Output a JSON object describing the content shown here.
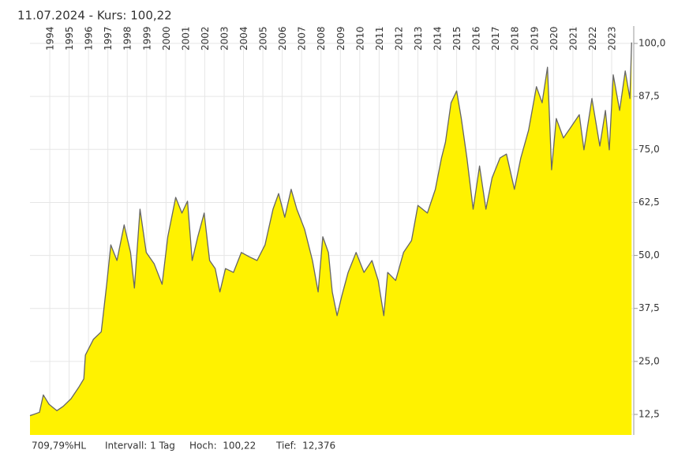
{
  "chart_data": {
    "type": "area",
    "title": "11.07.2024  -  Kurs: 100,22",
    "footer": [
      "709,79%HL",
      "Intervall: 1 Tag",
      "Hoch:  100,22",
      "Tief:  12,376"
    ],
    "x": [
      1993.48,
      1993.97,
      1994.17,
      1994.46,
      1994.87,
      1995.19,
      1995.6,
      1996.01,
      1996.26,
      1996.34,
      1996.75,
      1997.16,
      1997.44,
      1997.65,
      1997.97,
      1998.34,
      1998.67,
      1998.87,
      1999.16,
      1999.48,
      1999.89,
      2000.3,
      2000.59,
      2001.0,
      2001.32,
      2001.61,
      2001.85,
      2002.14,
      2002.47,
      2002.75,
      2003.04,
      2003.28,
      2003.57,
      2003.98,
      2004.39,
      2004.79,
      2005.2,
      2005.61,
      2006.02,
      2006.31,
      2006.63,
      2006.96,
      2007.25,
      2007.65,
      2008.06,
      2008.35,
      2008.59,
      2008.88,
      2009.08,
      2009.33,
      2009.57,
      2009.9,
      2010.31,
      2010.72,
      2011.13,
      2011.45,
      2011.74,
      2011.94,
      2012.35,
      2012.76,
      2013.17,
      2013.5,
      2013.99,
      2014.4,
      2014.72,
      2014.92,
      2015.21,
      2015.5,
      2015.74,
      2016.03,
      2016.35,
      2016.68,
      2017.01,
      2017.33,
      2017.74,
      2018.07,
      2018.48,
      2018.81,
      2019.21,
      2019.62,
      2019.91,
      2020.19,
      2020.4,
      2020.64,
      2021.01,
      2021.42,
      2021.83,
      2022.07,
      2022.48,
      2022.89,
      2023.18,
      2023.38,
      2023.58,
      2023.91,
      2024.2,
      2024.44,
      2024.53
    ],
    "series": [
      {
        "name": "Kurs",
        "color": "#fff200",
        "line_color": "#666666",
        "values": [
          12.2,
          13.0,
          17.1,
          14.9,
          13.4,
          14.4,
          16.2,
          19.0,
          20.9,
          26.5,
          30.2,
          32.0,
          43.2,
          52.5,
          48.8,
          57.2,
          50.7,
          42.3,
          60.9,
          50.7,
          48.0,
          43.2,
          54.4,
          63.7,
          60.0,
          62.8,
          48.8,
          54.4,
          60.0,
          48.8,
          46.9,
          41.4,
          46.9,
          46.0,
          50.7,
          49.7,
          48.8,
          52.5,
          60.9,
          64.6,
          59.0,
          65.6,
          60.9,
          56.2,
          48.8,
          41.4,
          54.4,
          50.7,
          41.4,
          35.8,
          40.4,
          46.0,
          50.7,
          46.0,
          48.8,
          44.1,
          35.8,
          46.0,
          44.1,
          50.7,
          53.5,
          61.8,
          60.0,
          65.6,
          73.0,
          76.7,
          86.0,
          88.8,
          82.3,
          73.0,
          60.9,
          71.1,
          60.9,
          68.3,
          73.0,
          73.9,
          65.6,
          73.0,
          79.5,
          89.8,
          86.0,
          94.4,
          70.2,
          82.3,
          77.7,
          80.4,
          83.2,
          74.9,
          87.0,
          75.8,
          84.2,
          74.9,
          92.6,
          84.2,
          93.5,
          87.0,
          100.22
        ]
      }
    ],
    "xlim": [
      1993.48,
      2024.6
    ],
    "xticks": [
      {
        "value": 1994.5,
        "label": "1994"
      },
      {
        "value": 1995.5,
        "label": "1995"
      },
      {
        "value": 1996.5,
        "label": "1996"
      },
      {
        "value": 1997.5,
        "label": "1997"
      },
      {
        "value": 1998.5,
        "label": "1998"
      },
      {
        "value": 1999.5,
        "label": "1999"
      },
      {
        "value": 2000.5,
        "label": "2000"
      },
      {
        "value": 2001.5,
        "label": "2001"
      },
      {
        "value": 2002.5,
        "label": "2002"
      },
      {
        "value": 2003.5,
        "label": "2003"
      },
      {
        "value": 2004.5,
        "label": "2004"
      },
      {
        "value": 2005.5,
        "label": "2005"
      },
      {
        "value": 2006.5,
        "label": "2006"
      },
      {
        "value": 2007.5,
        "label": "2007"
      },
      {
        "value": 2008.5,
        "label": "2008"
      },
      {
        "value": 2009.5,
        "label": "2009"
      },
      {
        "value": 2010.5,
        "label": "2010"
      },
      {
        "value": 2011.5,
        "label": "2011"
      },
      {
        "value": 2012.5,
        "label": "2012"
      },
      {
        "value": 2013.5,
        "label": "2013"
      },
      {
        "value": 2014.5,
        "label": "2014"
      },
      {
        "value": 2015.5,
        "label": "2015"
      },
      {
        "value": 2016.5,
        "label": "2016"
      },
      {
        "value": 2017.5,
        "label": "2017"
      },
      {
        "value": 2018.5,
        "label": "2018"
      },
      {
        "value": 2019.5,
        "label": "2019"
      },
      {
        "value": 2020.5,
        "label": "2020"
      },
      {
        "value": 2021.5,
        "label": "2021"
      },
      {
        "value": 2022.5,
        "label": "2022"
      },
      {
        "value": 2023.5,
        "label": "2023"
      }
    ],
    "ylim": [
      7.66,
      104.1
    ],
    "yticks": [
      {
        "value": 12.5,
        "label": "12,5"
      },
      {
        "value": 25,
        "label": "25,0"
      },
      {
        "value": 37.5,
        "label": "37,5"
      },
      {
        "value": 50,
        "label": "50,0"
      },
      {
        "value": 62.5,
        "label": "62,5"
      },
      {
        "value": 75,
        "label": "75,0"
      },
      {
        "value": 87.5,
        "label": "87,5"
      },
      {
        "value": 100,
        "label": "100,0"
      }
    ],
    "grid": true
  }
}
